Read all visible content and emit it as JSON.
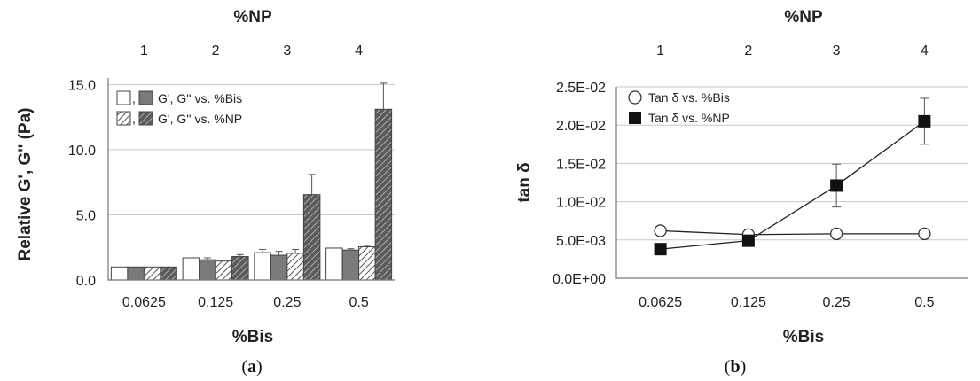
{
  "chart_data": [
    {
      "type": "bar",
      "panel_label": "a",
      "ylabel": "Relative G', G'' (Pa)",
      "xlabel": "%Bis",
      "x2label": "%NP",
      "categories": [
        "0.0625",
        "0.125",
        "0.25",
        "0.5"
      ],
      "top_ticks": [
        "1",
        "2",
        "3",
        "4"
      ],
      "yticks": [
        "0.0",
        "5.0",
        "10.0",
        "15.0"
      ],
      "ylim": [
        0,
        15.5
      ],
      "grid": "horizontal",
      "legend_position": "top-left",
      "legend": [
        {
          "text": "G', G'' vs. %Bis",
          "swatches": [
            "open",
            "solid"
          ]
        },
        {
          "text": "G', G'' vs. %NP",
          "swatches": [
            "hatched",
            "hatched-dark"
          ]
        }
      ],
      "series": [
        {
          "style": "open",
          "values": [
            1.0,
            1.7,
            2.1,
            2.45
          ],
          "errors": [
            0.0,
            0.0,
            0.25,
            0.0
          ]
        },
        {
          "style": "solid",
          "values": [
            1.0,
            1.55,
            1.9,
            2.3
          ],
          "errors": [
            0.0,
            0.15,
            0.3,
            0.1
          ]
        },
        {
          "style": "hatched",
          "values": [
            1.0,
            1.45,
            2.05,
            2.55
          ],
          "errors": [
            0.0,
            0.0,
            0.3,
            0.1
          ]
        },
        {
          "style": "hatched-dark",
          "values": [
            1.0,
            1.8,
            6.55,
            13.1
          ],
          "errors": [
            0.0,
            0.15,
            1.55,
            2.0
          ]
        }
      ]
    },
    {
      "type": "line",
      "panel_label": "b",
      "ylabel": "tan δ",
      "xlabel": "%Bis",
      "x2label": "%NP",
      "categories": [
        "0.0625",
        "0.125",
        "0.25",
        "0.5"
      ],
      "top_ticks": [
        "1",
        "2",
        "3",
        "4"
      ],
      "yticks": [
        "0.0E+00",
        "5.0E-03",
        "1.0E-02",
        "1.5E-02",
        "2.0E-02",
        "2.5E-02"
      ],
      "ylim": [
        0,
        0.025
      ],
      "grid": "horizontal",
      "legend_position": "top-left",
      "series": [
        {
          "name": "Tan δ vs. %Bis",
          "marker": "open-circle",
          "values": [
            0.0062,
            0.0057,
            0.0058,
            0.0058
          ],
          "errors": [
            0,
            0,
            0,
            0
          ]
        },
        {
          "name": "Tan δ vs. %NP",
          "marker": "filled-square",
          "values": [
            0.0038,
            0.0049,
            0.0121,
            0.0205
          ],
          "errors": [
            0,
            0,
            0.0028,
            0.003
          ]
        }
      ]
    }
  ]
}
